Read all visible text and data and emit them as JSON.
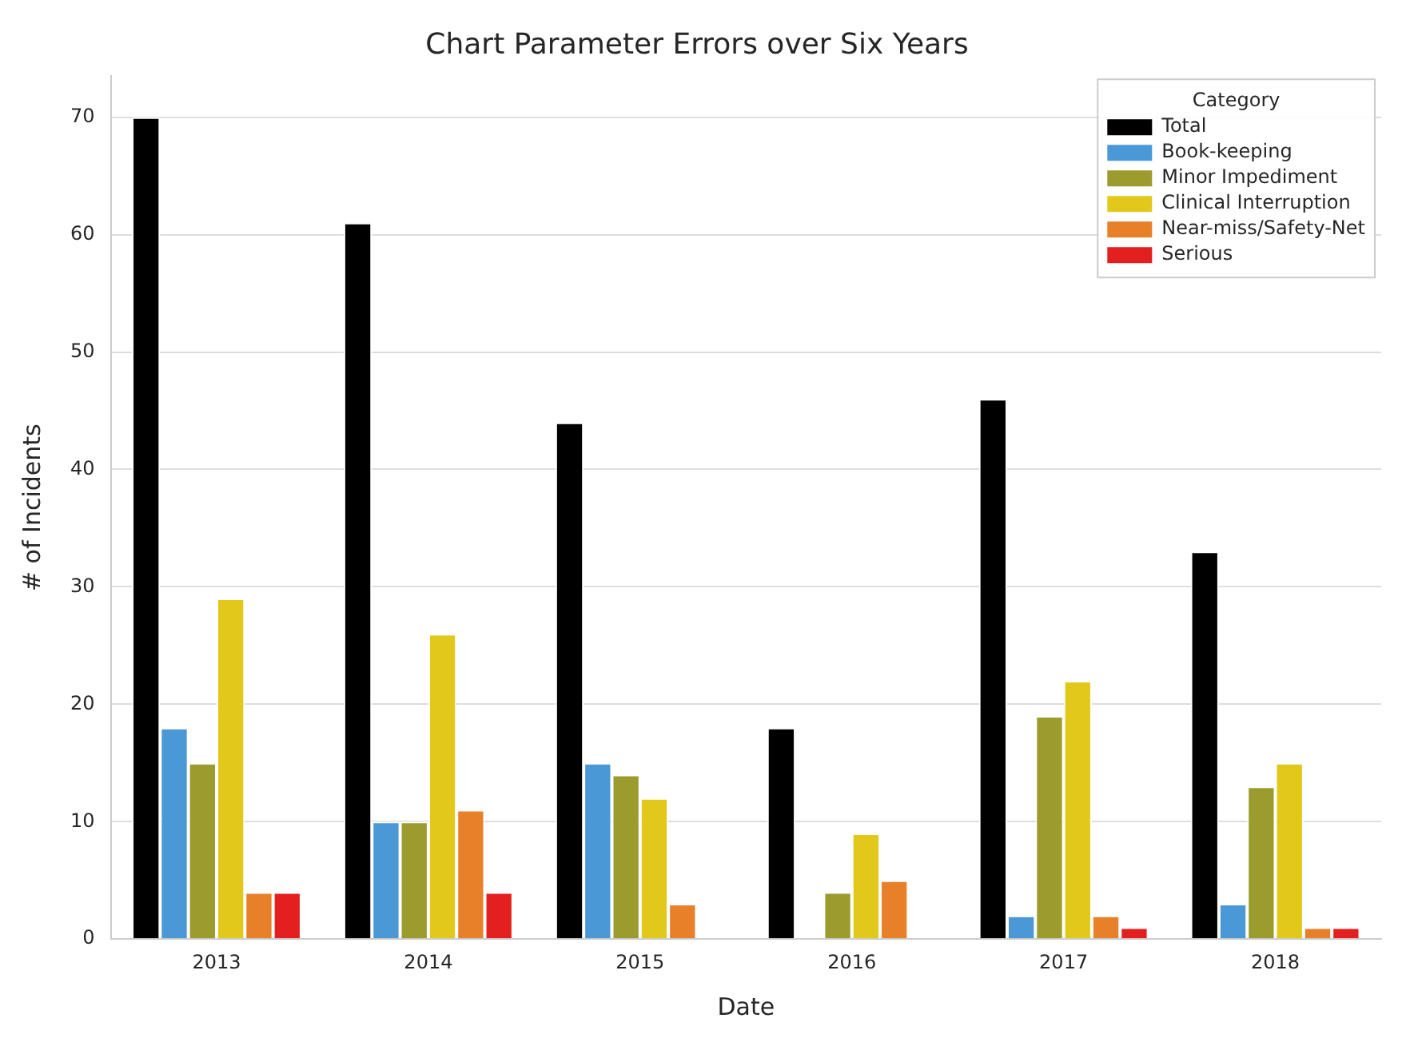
{
  "chart_data": {
    "type": "bar",
    "title": "Chart Parameter Errors over Six Years",
    "xlabel": "Date",
    "ylabel": "# of Incidents",
    "legend_title": "Category",
    "categories": [
      "2013",
      "2014",
      "2015",
      "2016",
      "2017",
      "2018"
    ],
    "series": [
      {
        "name": "Total",
        "color": "#000000",
        "values": [
          70,
          61,
          44,
          18,
          46,
          33
        ]
      },
      {
        "name": "Book-keeping",
        "color": "#4a98d6",
        "values": [
          18,
          10,
          15,
          0,
          2,
          3
        ]
      },
      {
        "name": "Minor Impediment",
        "color": "#9b9b2e",
        "values": [
          15,
          10,
          14,
          4,
          19,
          13
        ]
      },
      {
        "name": "Clinical Interruption",
        "color": "#e3c81c",
        "values": [
          29,
          26,
          12,
          9,
          22,
          15
        ]
      },
      {
        "name": "Near-miss/Safety-Net",
        "color": "#e8802a",
        "values": [
          4,
          11,
          3,
          5,
          2,
          1
        ]
      },
      {
        "name": "Serious",
        "color": "#e3201f",
        "values": [
          4,
          4,
          0,
          0,
          1,
          1
        ]
      }
    ],
    "ylim": [
      0,
      73.5
    ],
    "yticks": [
      0,
      10,
      20,
      30,
      40,
      50,
      60,
      70
    ],
    "grid": "y",
    "legend": "top right"
  }
}
